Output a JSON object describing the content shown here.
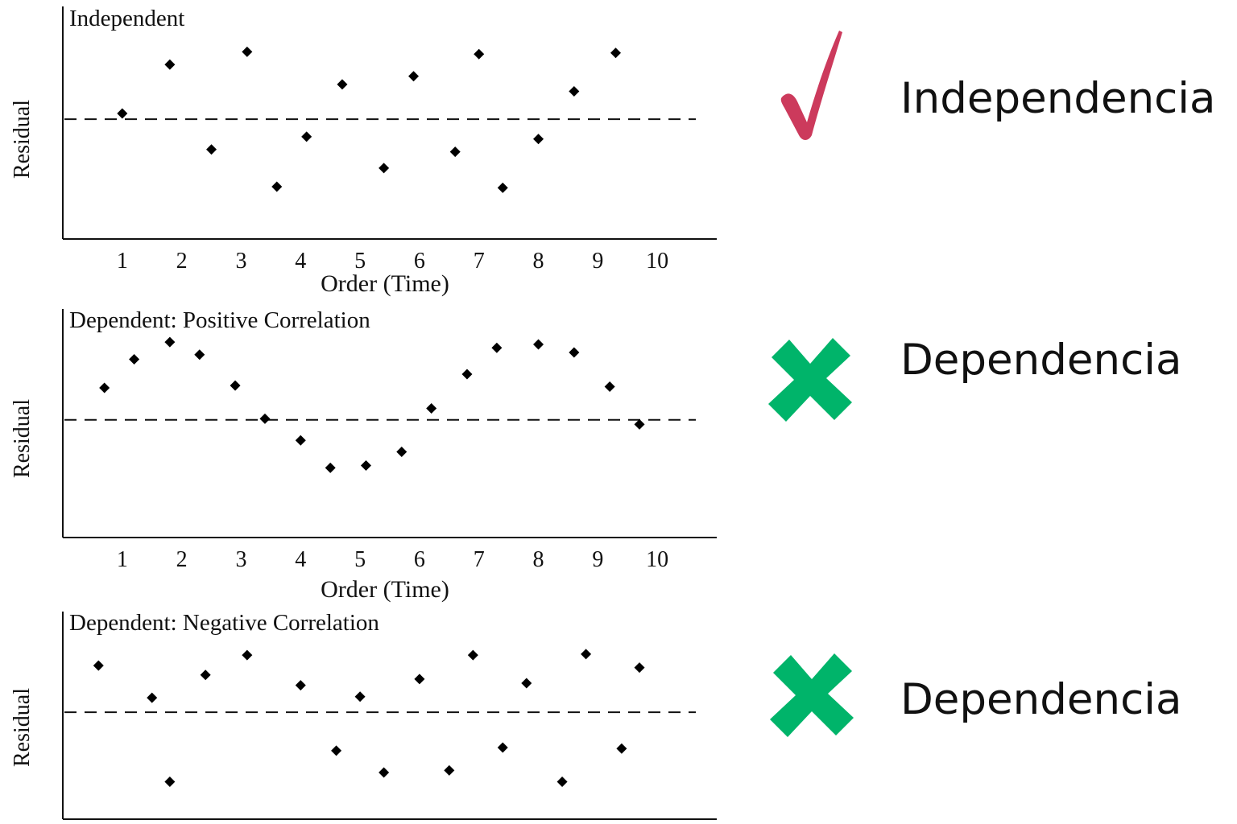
{
  "chart_data": [
    {
      "type": "scatter",
      "title": "Independent",
      "ylabel": "Residual",
      "xlabel": "Order (Time)",
      "xticks": [
        1,
        2,
        3,
        4,
        5,
        6,
        7,
        8,
        9,
        10
      ],
      "xlim": [
        0.0,
        11.0
      ],
      "ylim": [
        -1.0,
        1.0
      ],
      "reference_line_y": 0,
      "points": [
        {
          "x": 1.0,
          "y": 0.05
        },
        {
          "x": 1.8,
          "y": 0.47
        },
        {
          "x": 2.5,
          "y": -0.26
        },
        {
          "x": 3.1,
          "y": 0.58
        },
        {
          "x": 3.6,
          "y": -0.58
        },
        {
          "x": 4.1,
          "y": -0.15
        },
        {
          "x": 4.7,
          "y": 0.3
        },
        {
          "x": 5.4,
          "y": -0.42
        },
        {
          "x": 5.9,
          "y": 0.37
        },
        {
          "x": 6.6,
          "y": -0.28
        },
        {
          "x": 7.0,
          "y": 0.56
        },
        {
          "x": 7.4,
          "y": -0.59
        },
        {
          "x": 8.0,
          "y": -0.17
        },
        {
          "x": 8.6,
          "y": 0.24
        },
        {
          "x": 9.3,
          "y": 0.57
        }
      ]
    },
    {
      "type": "scatter",
      "title": "Dependent: Positive Correlation",
      "ylabel": "Residual",
      "xlabel": "Order (Time)",
      "xticks": [
        1,
        2,
        3,
        4,
        5,
        6,
        7,
        8,
        9,
        10
      ],
      "xlim": [
        0.0,
        11.0
      ],
      "ylim": [
        -1.0,
        1.0
      ],
      "reference_line_y": 0,
      "points": [
        {
          "x": 0.7,
          "y": 0.28
        },
        {
          "x": 1.2,
          "y": 0.53
        },
        {
          "x": 1.8,
          "y": 0.68
        },
        {
          "x": 2.3,
          "y": 0.57
        },
        {
          "x": 2.9,
          "y": 0.3
        },
        {
          "x": 3.4,
          "y": 0.01
        },
        {
          "x": 4.0,
          "y": -0.18
        },
        {
          "x": 4.5,
          "y": -0.42
        },
        {
          "x": 5.1,
          "y": -0.4
        },
        {
          "x": 5.7,
          "y": -0.28
        },
        {
          "x": 6.2,
          "y": 0.1
        },
        {
          "x": 6.8,
          "y": 0.4
        },
        {
          "x": 7.3,
          "y": 0.63
        },
        {
          "x": 8.0,
          "y": 0.66
        },
        {
          "x": 8.6,
          "y": 0.59
        },
        {
          "x": 9.2,
          "y": 0.29
        },
        {
          "x": 9.7,
          "y": -0.04
        }
      ]
    },
    {
      "type": "scatter",
      "title": "Dependent: Negative Correlation",
      "ylabel": "Residual",
      "xlim": [
        0.0,
        11.0
      ],
      "ylim": [
        -1.0,
        1.0
      ],
      "reference_line_y": 0,
      "points": [
        {
          "x": 0.6,
          "y": 0.45
        },
        {
          "x": 1.5,
          "y": 0.14
        },
        {
          "x": 1.8,
          "y": -0.67
        },
        {
          "x": 2.4,
          "y": 0.36
        },
        {
          "x": 3.1,
          "y": 0.55
        },
        {
          "x": 4.0,
          "y": 0.26
        },
        {
          "x": 4.6,
          "y": -0.37
        },
        {
          "x": 5.0,
          "y": 0.15
        },
        {
          "x": 5.4,
          "y": -0.58
        },
        {
          "x": 6.0,
          "y": 0.32
        },
        {
          "x": 6.5,
          "y": -0.56
        },
        {
          "x": 6.9,
          "y": 0.55
        },
        {
          "x": 7.4,
          "y": -0.34
        },
        {
          "x": 7.8,
          "y": 0.28
        },
        {
          "x": 8.4,
          "y": -0.67
        },
        {
          "x": 8.8,
          "y": 0.56
        },
        {
          "x": 9.4,
          "y": -0.35
        },
        {
          "x": 9.7,
          "y": 0.43
        }
      ]
    }
  ],
  "verdicts": [
    {
      "label": "Independencia",
      "icon": "check-icon",
      "color": "#cc3a5c"
    },
    {
      "label": "Dependencia",
      "icon": "cross-icon",
      "color": "#00b46a"
    },
    {
      "label": "Dependencia",
      "icon": "cross-icon",
      "color": "#00b46a"
    }
  ]
}
